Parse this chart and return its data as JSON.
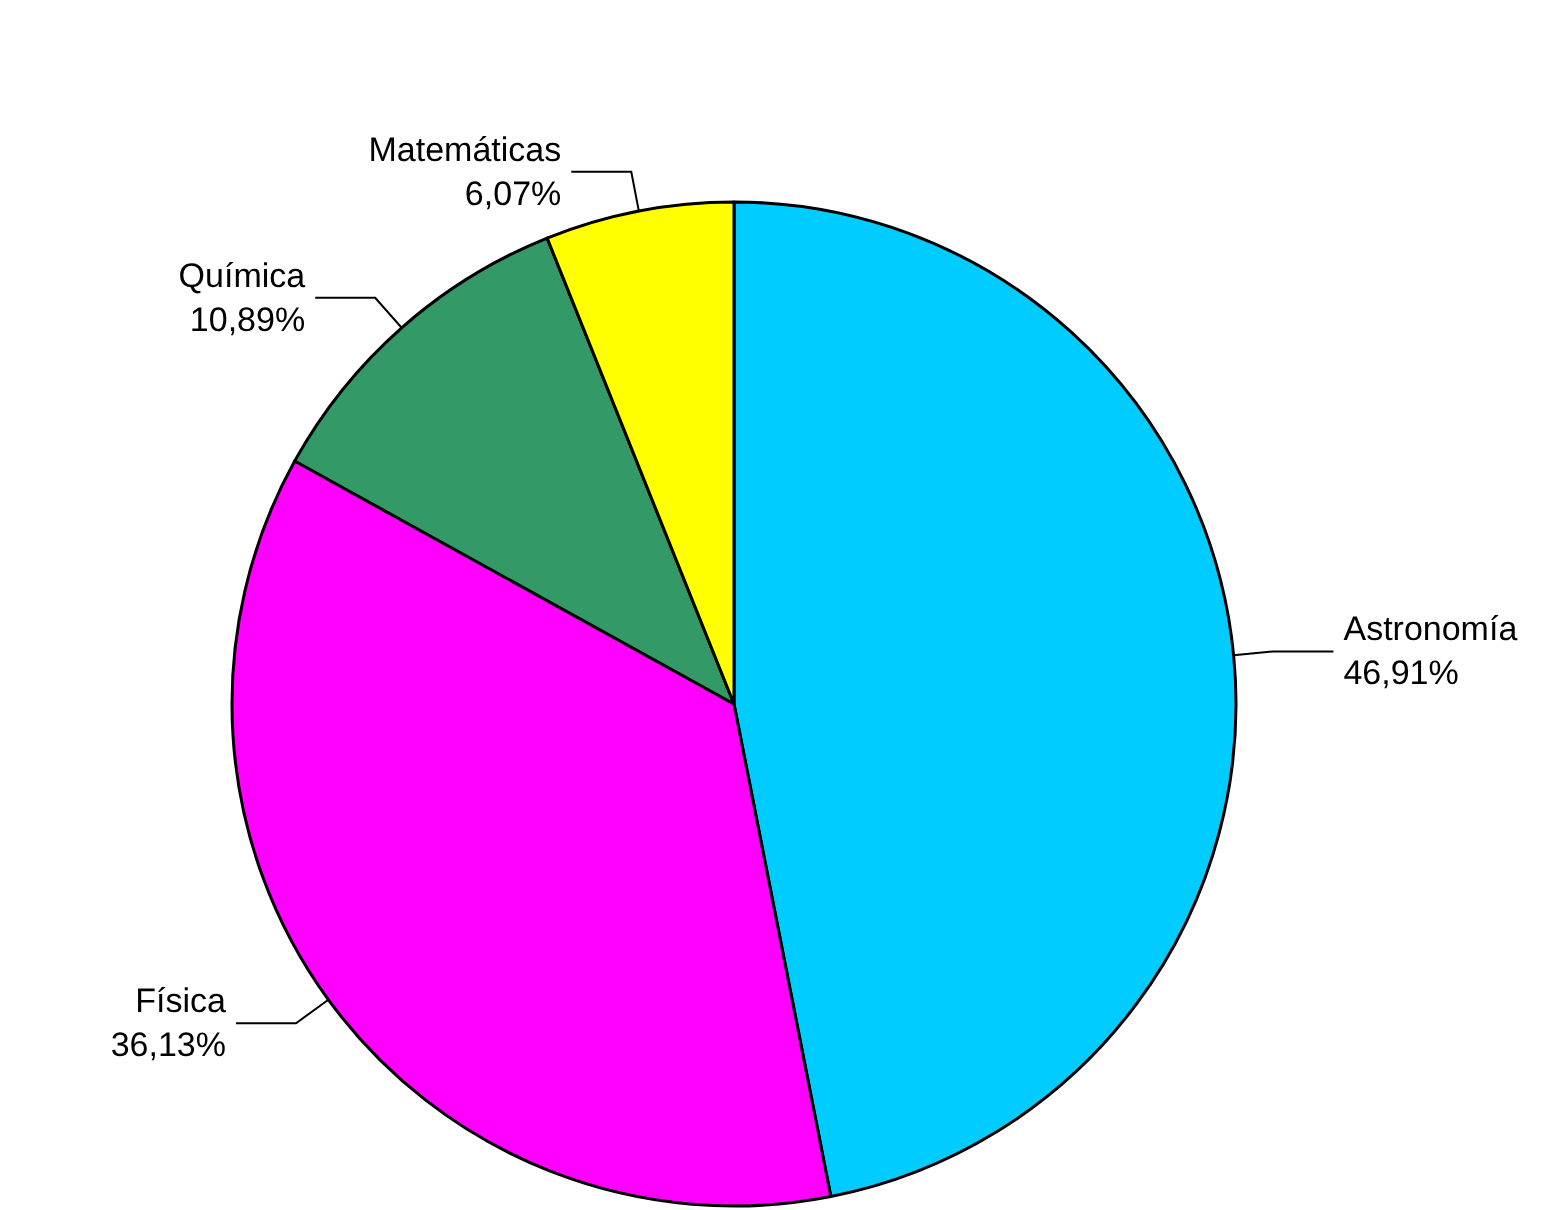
{
  "chart_data": {
    "type": "pie",
    "categories": [
      "Astronomía",
      "Física",
      "Química",
      "Matemáticas"
    ],
    "values": [
      46.91,
      36.13,
      10.89,
      6.07
    ],
    "colors": [
      "#00ccff",
      "#ff00ff",
      "#339966",
      "#ffff00"
    ],
    "value_labels": [
      "46,91%",
      "36,13%",
      "10,89%",
      "6,07%"
    ],
    "legend": false
  }
}
